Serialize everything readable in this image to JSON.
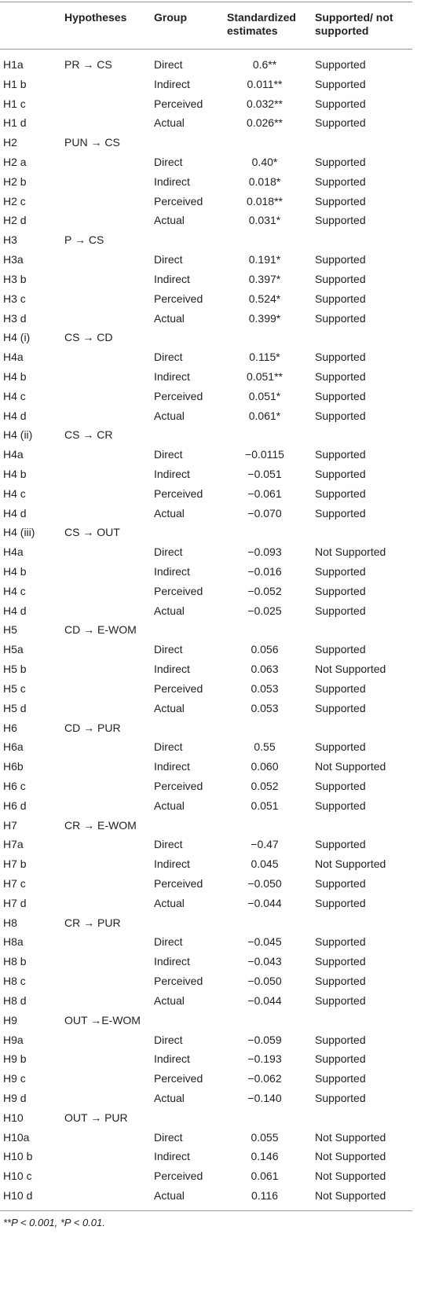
{
  "table": {
    "header": [
      "Hypotheses",
      "Group",
      "Standardized estimates",
      "Supported/ not supported"
    ],
    "rows": [
      [
        "H1a",
        "PR → CS",
        "Direct",
        "0.6**",
        "Supported"
      ],
      [
        "H1 b",
        null,
        "Indirect",
        "0.011**",
        "Supported"
      ],
      [
        "H1 c",
        null,
        "Perceived",
        "0.032**",
        "Supported"
      ],
      [
        "H1 d",
        null,
        "Actual",
        "0.026**",
        "Supported"
      ],
      [
        "H2",
        "PUN → CS",
        null,
        null,
        null
      ],
      [
        "H2 a",
        null,
        "Direct",
        "0.40*",
        "Supported"
      ],
      [
        "H2 b",
        null,
        "Indirect",
        "0.018*",
        "Supported"
      ],
      [
        "H2 c",
        null,
        "Perceived",
        "0.018**",
        "Supported"
      ],
      [
        "H2 d",
        null,
        "Actual",
        "0.031*",
        "Supported"
      ],
      [
        "H3",
        "P → CS",
        null,
        null,
        null
      ],
      [
        "H3a",
        null,
        "Direct",
        "0.191*",
        "Supported"
      ],
      [
        "H3 b",
        null,
        "Indirect",
        "0.397*",
        "Supported"
      ],
      [
        "H3 c",
        null,
        "Perceived",
        "0.524*",
        "Supported"
      ],
      [
        "H3 d",
        null,
        "Actual",
        "0.399*",
        "Supported"
      ],
      [
        "H4 (i)",
        "CS → CD",
        null,
        null,
        null
      ],
      [
        "H4a",
        null,
        "Direct",
        "0.115*",
        "Supported"
      ],
      [
        "H4 b",
        null,
        "Indirect",
        "0.051**",
        "Supported"
      ],
      [
        "H4 c",
        null,
        "Perceived",
        "0.051*",
        "Supported"
      ],
      [
        "H4 d",
        null,
        "Actual",
        "0.061*",
        "Supported"
      ],
      [
        "H4 (ii)",
        "CS → CR",
        null,
        null,
        null
      ],
      [
        "H4a",
        null,
        "Direct",
        "−0.0115",
        "Supported"
      ],
      [
        "H4 b",
        null,
        "Indirect",
        "−0.051",
        "Supported"
      ],
      [
        "H4 c",
        null,
        "Perceived",
        "−0.061",
        "Supported"
      ],
      [
        "H4 d",
        null,
        "Actual",
        "−0.070",
        "Supported"
      ],
      [
        "H4 (iii)",
        "CS → OUT",
        null,
        null,
        null
      ],
      [
        "H4a",
        null,
        "Direct",
        "−0.093",
        "Not Supported"
      ],
      [
        "H4 b",
        null,
        "Indirect",
        "−0.016",
        "Supported"
      ],
      [
        "H4 c",
        null,
        "Perceived",
        "−0.052",
        "Supported"
      ],
      [
        "H4 d",
        null,
        "Actual",
        "−0.025",
        "Supported"
      ],
      [
        "H5",
        "CD → E-WOM",
        null,
        null,
        null
      ],
      [
        "H5a",
        null,
        "Direct",
        "0.056",
        "Supported"
      ],
      [
        "H5 b",
        null,
        "Indirect",
        "0.063",
        "Not Supported"
      ],
      [
        "H5 c",
        null,
        "Perceived",
        "0.053",
        "Supported"
      ],
      [
        "H5 d",
        null,
        "Actual",
        "0.053",
        "Supported"
      ],
      [
        "H6",
        "CD → PUR",
        null,
        null,
        null
      ],
      [
        "H6a",
        null,
        "Direct",
        "0.55",
        "Supported"
      ],
      [
        "H6b",
        null,
        "Indirect",
        "0.060",
        "Not Supported"
      ],
      [
        "H6 c",
        null,
        "Perceived",
        "0.052",
        "Supported"
      ],
      [
        "H6 d",
        null,
        "Actual",
        "0.051",
        "Supported"
      ],
      [
        "H7",
        "CR → E-WOM",
        null,
        null,
        null
      ],
      [
        "H7a",
        null,
        "Direct",
        "−0.47",
        "Supported"
      ],
      [
        "H7 b",
        null,
        "Indirect",
        "0.045",
        "Not Supported"
      ],
      [
        "H7 c",
        null,
        "Perceived",
        "−0.050",
        "Supported"
      ],
      [
        "H7 d",
        null,
        "Actual",
        "−0.044",
        "Supported"
      ],
      [
        "H8",
        "CR → PUR",
        null,
        null,
        null
      ],
      [
        "H8a",
        null,
        "Direct",
        "−0.045",
        "Supported"
      ],
      [
        "H8 b",
        null,
        "Indirect",
        "−0.043",
        "Supported"
      ],
      [
        "H8 c",
        null,
        "Perceived",
        "−0.050",
        "Supported"
      ],
      [
        "H8 d",
        null,
        "Actual",
        "−0.044",
        "Supported"
      ],
      [
        "H9",
        "OUT →E-WOM",
        null,
        null,
        null
      ],
      [
        "H9a",
        null,
        "Direct",
        "−0.059",
        "Supported"
      ],
      [
        "H9 b",
        null,
        "Indirect",
        "−0.193",
        "Supported"
      ],
      [
        "H9 c",
        null,
        "Perceived",
        "−0.062",
        "Supported"
      ],
      [
        "H9 d",
        null,
        "Actual",
        "−0.140",
        "Supported"
      ],
      [
        "H10",
        "OUT → PUR",
        null,
        null,
        null
      ],
      [
        "H10a",
        null,
        "Direct",
        "0.055",
        "Not Supported"
      ],
      [
        "H10 b",
        null,
        "Indirect",
        "0.146",
        "Not Supported"
      ],
      [
        "H10 c",
        null,
        "Perceived",
        "0.061",
        "Not Supported"
      ],
      [
        "H10 d",
        null,
        "Actual",
        "0.116",
        "Not Supported"
      ]
    ]
  },
  "footnote": "**P < 0.001, *P < 0.01."
}
